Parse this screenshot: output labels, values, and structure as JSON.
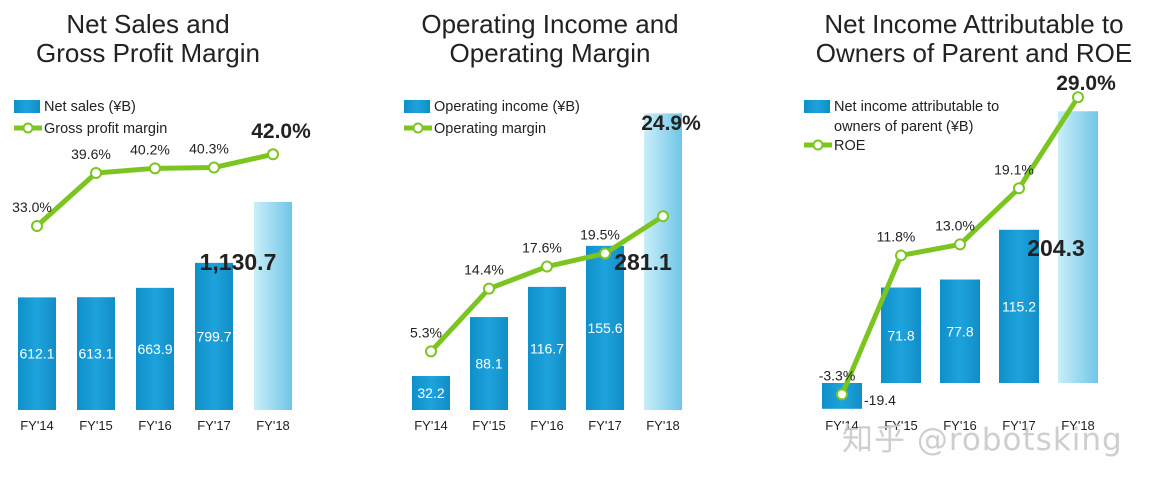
{
  "chart_data": [
    {
      "type": "bar",
      "title": "Net Sales and\nGross Profit Margin",
      "categories": [
        "FY'14",
        "FY'15",
        "FY'16",
        "FY'17",
        "FY'18"
      ],
      "series": [
        {
          "name": "Net sales (¥B)",
          "type": "bar",
          "values": [
            612.1,
            613.1,
            663.9,
            799.7,
            1130.7
          ],
          "labels": [
            "612.1",
            "613.1",
            "663.9",
            "799.7",
            "1,130.7"
          ]
        },
        {
          "name": "Gross profit margin",
          "type": "line",
          "values": [
            33.0,
            39.6,
            40.2,
            40.3,
            42.0
          ],
          "labels": [
            "33.0%",
            "39.6%",
            "40.2%",
            "40.3%",
            "42.0%"
          ]
        }
      ],
      "legend_position": "top-left"
    },
    {
      "type": "bar",
      "title": "Operating Income and\nOperating Margin",
      "categories": [
        "FY'14",
        "FY'15",
        "FY'16",
        "FY'17",
        "FY'18"
      ],
      "series": [
        {
          "name": "Operating income (¥B)",
          "type": "bar",
          "values": [
            32.2,
            88.1,
            116.7,
            155.6,
            281.1
          ],
          "labels": [
            "32.2",
            "88.1",
            "116.7",
            "155.6",
            "281.1"
          ]
        },
        {
          "name": "Operating margin",
          "type": "line",
          "values": [
            5.3,
            14.4,
            17.6,
            19.5,
            24.9
          ],
          "labels": [
            "5.3%",
            "14.4%",
            "17.6%",
            "19.5%",
            "24.9%"
          ]
        }
      ],
      "legend_position": "top-left"
    },
    {
      "type": "bar",
      "title": "Net Income Attributable to\nOwners of Parent and ROE",
      "categories": [
        "FY'14",
        "FY'15",
        "FY'16",
        "FY'17",
        "FY'18"
      ],
      "series": [
        {
          "name": "Net  income attributable to\nowners of parent (¥B)",
          "type": "bar",
          "values": [
            -19.4,
            71.8,
            77.8,
            115.2,
            204.3
          ],
          "labels": [
            "-19.4",
            "71.8",
            "77.8",
            "115.2",
            "204.3"
          ]
        },
        {
          "name": "ROE",
          "type": "line",
          "values": [
            -3.3,
            11.8,
            13.0,
            19.1,
            29.0
          ],
          "labels": [
            "-3.3%",
            "11.8%",
            "13.0%",
            "19.1%",
            "29.0%"
          ]
        }
      ],
      "legend_position": "top-left"
    }
  ],
  "colors": {
    "bar": "#1ea3dc",
    "bar_highlight": "#a8e0f3",
    "line": "#7cc520",
    "marker_fill": "#ffffff",
    "text": "#333333"
  },
  "watermark": "知乎 @robotsking"
}
